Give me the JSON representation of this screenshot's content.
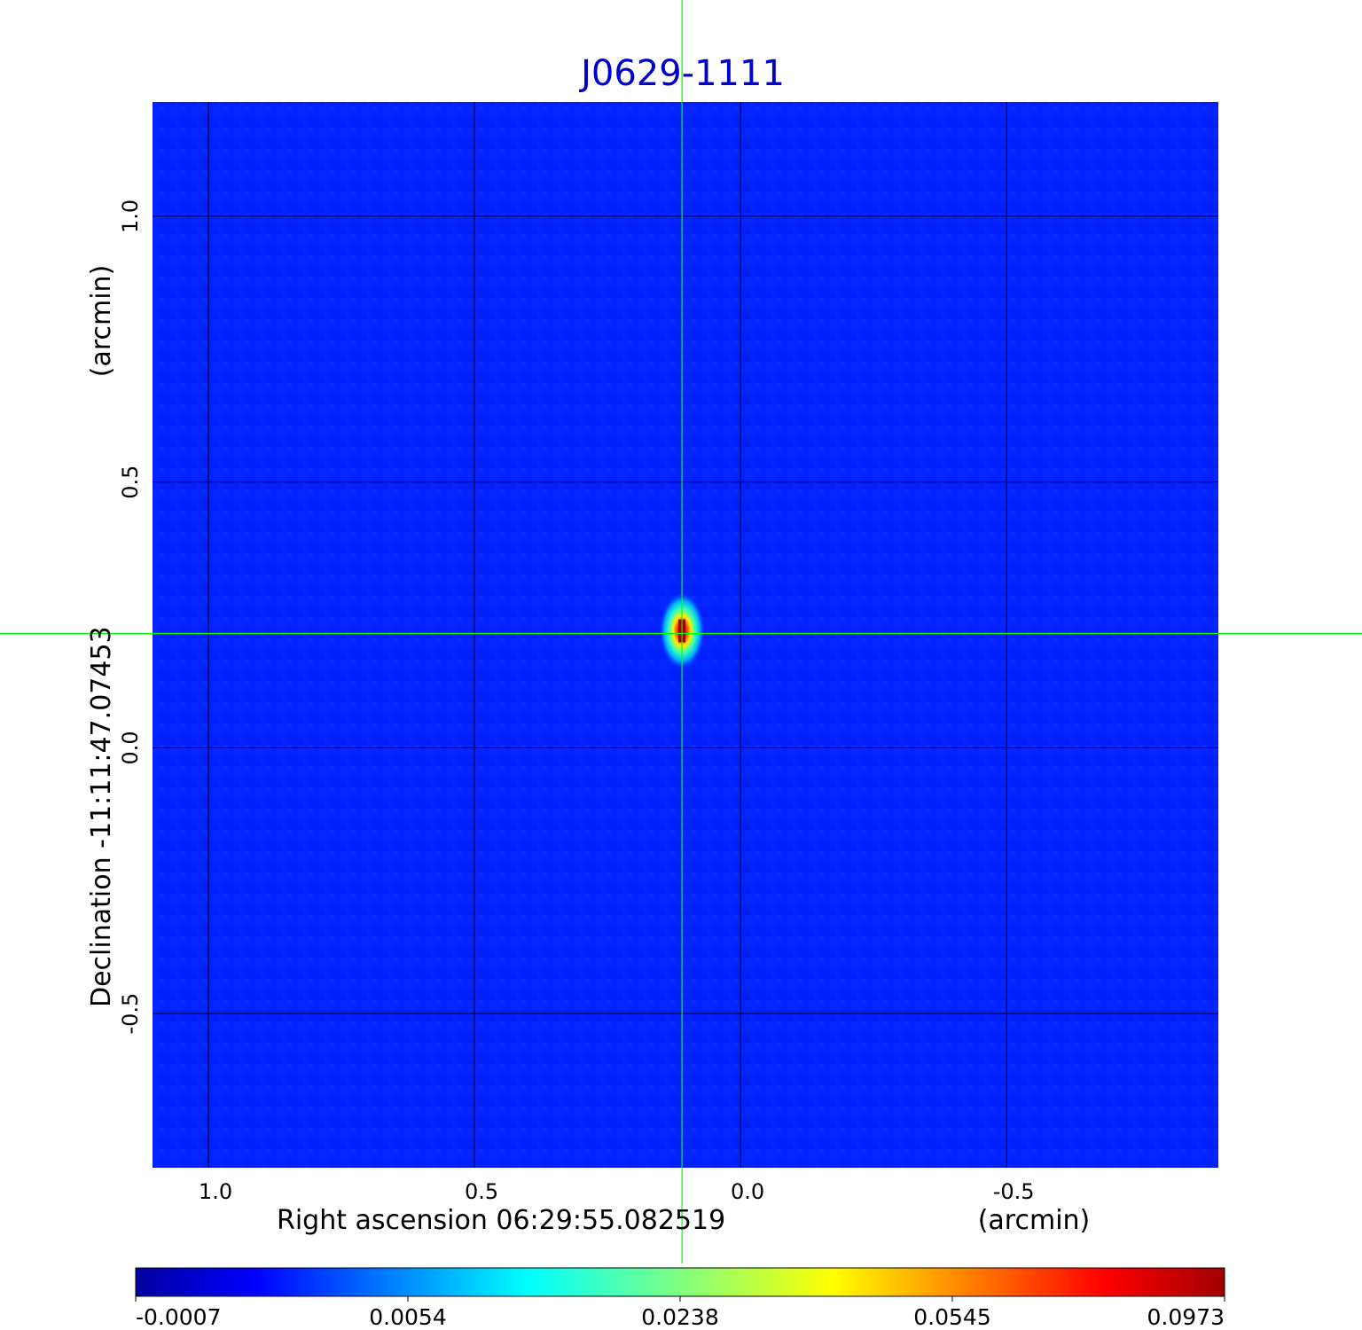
{
  "chart_data": {
    "type": "heatmap",
    "title": "J0629-1111",
    "xlabel": "Right ascension  06:29:55.082519",
    "xunit": "(arcmin)",
    "ylabel": "Declination  -11:11:47.07453",
    "yunit": "(arcmin)",
    "x_ticks": [
      "1.0",
      "0.5",
      "0.0",
      "-0.5"
    ],
    "y_ticks": [
      "1.0",
      "0.5",
      "0.0",
      "-0.5"
    ],
    "x_tick_values": [
      1.0,
      0.5,
      0.0,
      -0.5
    ],
    "y_tick_values": [
      1.0,
      0.5,
      0.0,
      -0.5
    ],
    "xlim": [
      1.105,
      -0.898
    ],
    "ylim": [
      -0.79,
      1.215
    ],
    "grid": true,
    "crosshair": {
      "x": 0.11,
      "y": 0.215,
      "color": "#00ff00"
    },
    "source": {
      "x": 0.11,
      "y": 0.22,
      "peak": 0.0973
    },
    "colormap": "jet",
    "colorbar_ticks": [
      "-0.0007",
      "0.0054",
      "0.0238",
      "0.0545",
      "0.0973"
    ],
    "colorbar_position": "bottom"
  }
}
